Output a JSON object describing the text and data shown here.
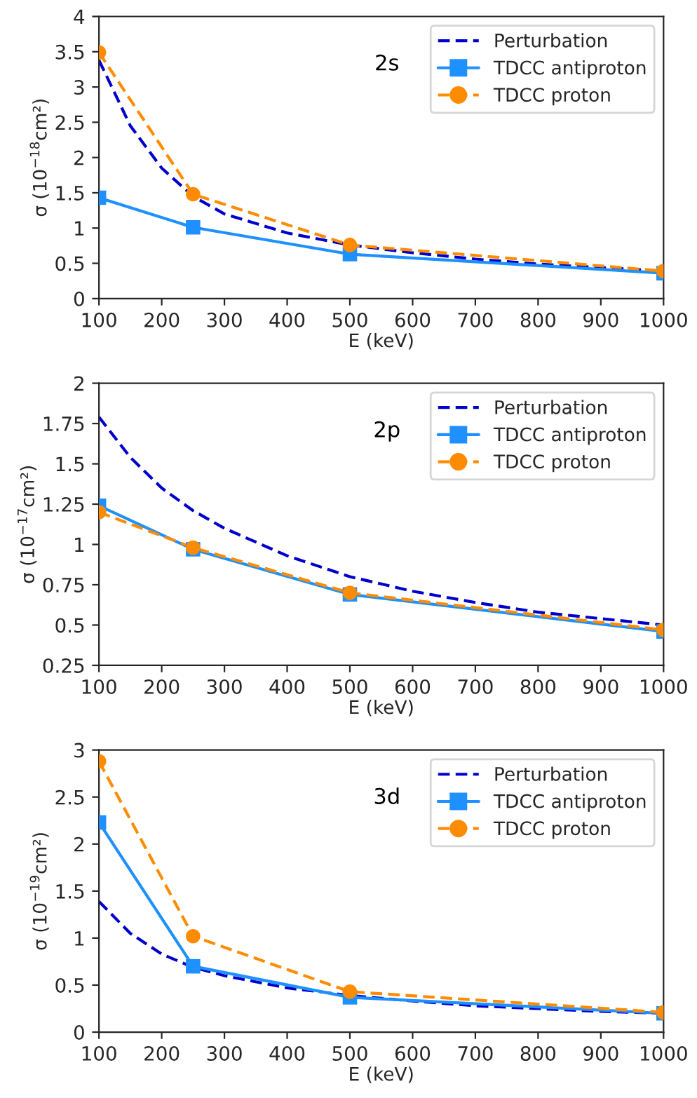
{
  "chart_data": [
    {
      "type": "line",
      "xlabel": "E (keV)",
      "ylabel": "σ (10$^{−18}$cm²)",
      "annotations": [
        "2s"
      ],
      "xlim": [
        100,
        1000
      ],
      "xticks": [
        100,
        200,
        300,
        400,
        500,
        600,
        700,
        800,
        900,
        1000
      ],
      "ylim": [
        0,
        4
      ],
      "yticks": [
        0,
        0.5,
        1,
        1.5,
        2,
        2.5,
        3,
        3.5,
        4
      ],
      "grid": false,
      "legend": "top right",
      "series": [
        {
          "name": "Perturbation",
          "color": "#0000cd",
          "line_style": "dashed",
          "marker": "none",
          "x": [
            100,
            150,
            200,
            250,
            300,
            400,
            500,
            600,
            700,
            800,
            900,
            1000
          ],
          "values": [
            3.38,
            2.45,
            1.85,
            1.45,
            1.2,
            0.93,
            0.76,
            0.65,
            0.56,
            0.49,
            0.44,
            0.39
          ]
        },
        {
          "name": "TDCC antiproton",
          "color": "#1e90ff",
          "line_style": "solid",
          "marker": "square",
          "x": [
            100,
            250,
            500,
            1000
          ],
          "values": [
            1.43,
            1.01,
            0.63,
            0.36
          ]
        },
        {
          "name": "TDCC proton",
          "color": "#ff8c00",
          "line_style": "dashed",
          "marker": "circle",
          "x": [
            100,
            250,
            500,
            1000
          ],
          "values": [
            3.49,
            1.48,
            0.76,
            0.39
          ]
        }
      ]
    },
    {
      "type": "line",
      "xlabel": "E (keV)",
      "ylabel": "σ (10$^{−17}$cm²)",
      "annotations": [
        "2p"
      ],
      "xlim": [
        100,
        1000
      ],
      "xticks": [
        100,
        200,
        300,
        400,
        500,
        600,
        700,
        800,
        900,
        1000
      ],
      "ylim": [
        0.25,
        2
      ],
      "yticks": [
        0.25,
        0.5,
        0.75,
        1,
        1.25,
        1.5,
        1.75,
        2
      ],
      "grid": false,
      "legend": "top right",
      "series": [
        {
          "name": "Perturbation",
          "color": "#0000cd",
          "line_style": "dashed",
          "marker": "none",
          "x": [
            100,
            150,
            200,
            250,
            300,
            400,
            500,
            600,
            700,
            800,
            900,
            1000
          ],
          "values": [
            1.79,
            1.54,
            1.35,
            1.21,
            1.1,
            0.93,
            0.8,
            0.71,
            0.64,
            0.58,
            0.54,
            0.5
          ]
        },
        {
          "name": "TDCC antiproton",
          "color": "#1e90ff",
          "line_style": "solid",
          "marker": "square",
          "x": [
            100,
            250,
            500,
            1000
          ],
          "values": [
            1.24,
            0.97,
            0.69,
            0.46
          ]
        },
        {
          "name": "TDCC proton",
          "color": "#ff8c00",
          "line_style": "dashed",
          "marker": "circle",
          "x": [
            100,
            250,
            500,
            1000
          ],
          "values": [
            1.2,
            0.98,
            0.7,
            0.47
          ]
        }
      ]
    },
    {
      "type": "line",
      "xlabel": "E (keV)",
      "ylabel": "σ (10$^{−19}$cm²)",
      "annotations": [
        "3d"
      ],
      "xlim": [
        100,
        1000
      ],
      "xticks": [
        100,
        200,
        300,
        400,
        500,
        600,
        700,
        800,
        900,
        1000
      ],
      "ylim": [
        0,
        3
      ],
      "yticks": [
        0,
        0.5,
        1,
        1.5,
        2,
        2.5,
        3
      ],
      "grid": false,
      "legend": "top right",
      "series": [
        {
          "name": "Perturbation",
          "color": "#0000cd",
          "line_style": "dashed",
          "marker": "none",
          "x": [
            100,
            150,
            200,
            250,
            300,
            400,
            500,
            600,
            700,
            800,
            900,
            1000
          ],
          "values": [
            1.39,
            1.05,
            0.83,
            0.69,
            0.6,
            0.47,
            0.39,
            0.33,
            0.28,
            0.25,
            0.22,
            0.2
          ]
        },
        {
          "name": "TDCC antiproton",
          "color": "#1e90ff",
          "line_style": "solid",
          "marker": "square",
          "x": [
            100,
            250,
            500,
            1000
          ],
          "values": [
            2.23,
            0.7,
            0.37,
            0.2
          ]
        },
        {
          "name": "TDCC proton",
          "color": "#ff8c00",
          "line_style": "dashed",
          "marker": "circle",
          "x": [
            100,
            250,
            500,
            1000
          ],
          "values": [
            2.88,
            1.02,
            0.43,
            0.21
          ]
        }
      ]
    }
  ]
}
